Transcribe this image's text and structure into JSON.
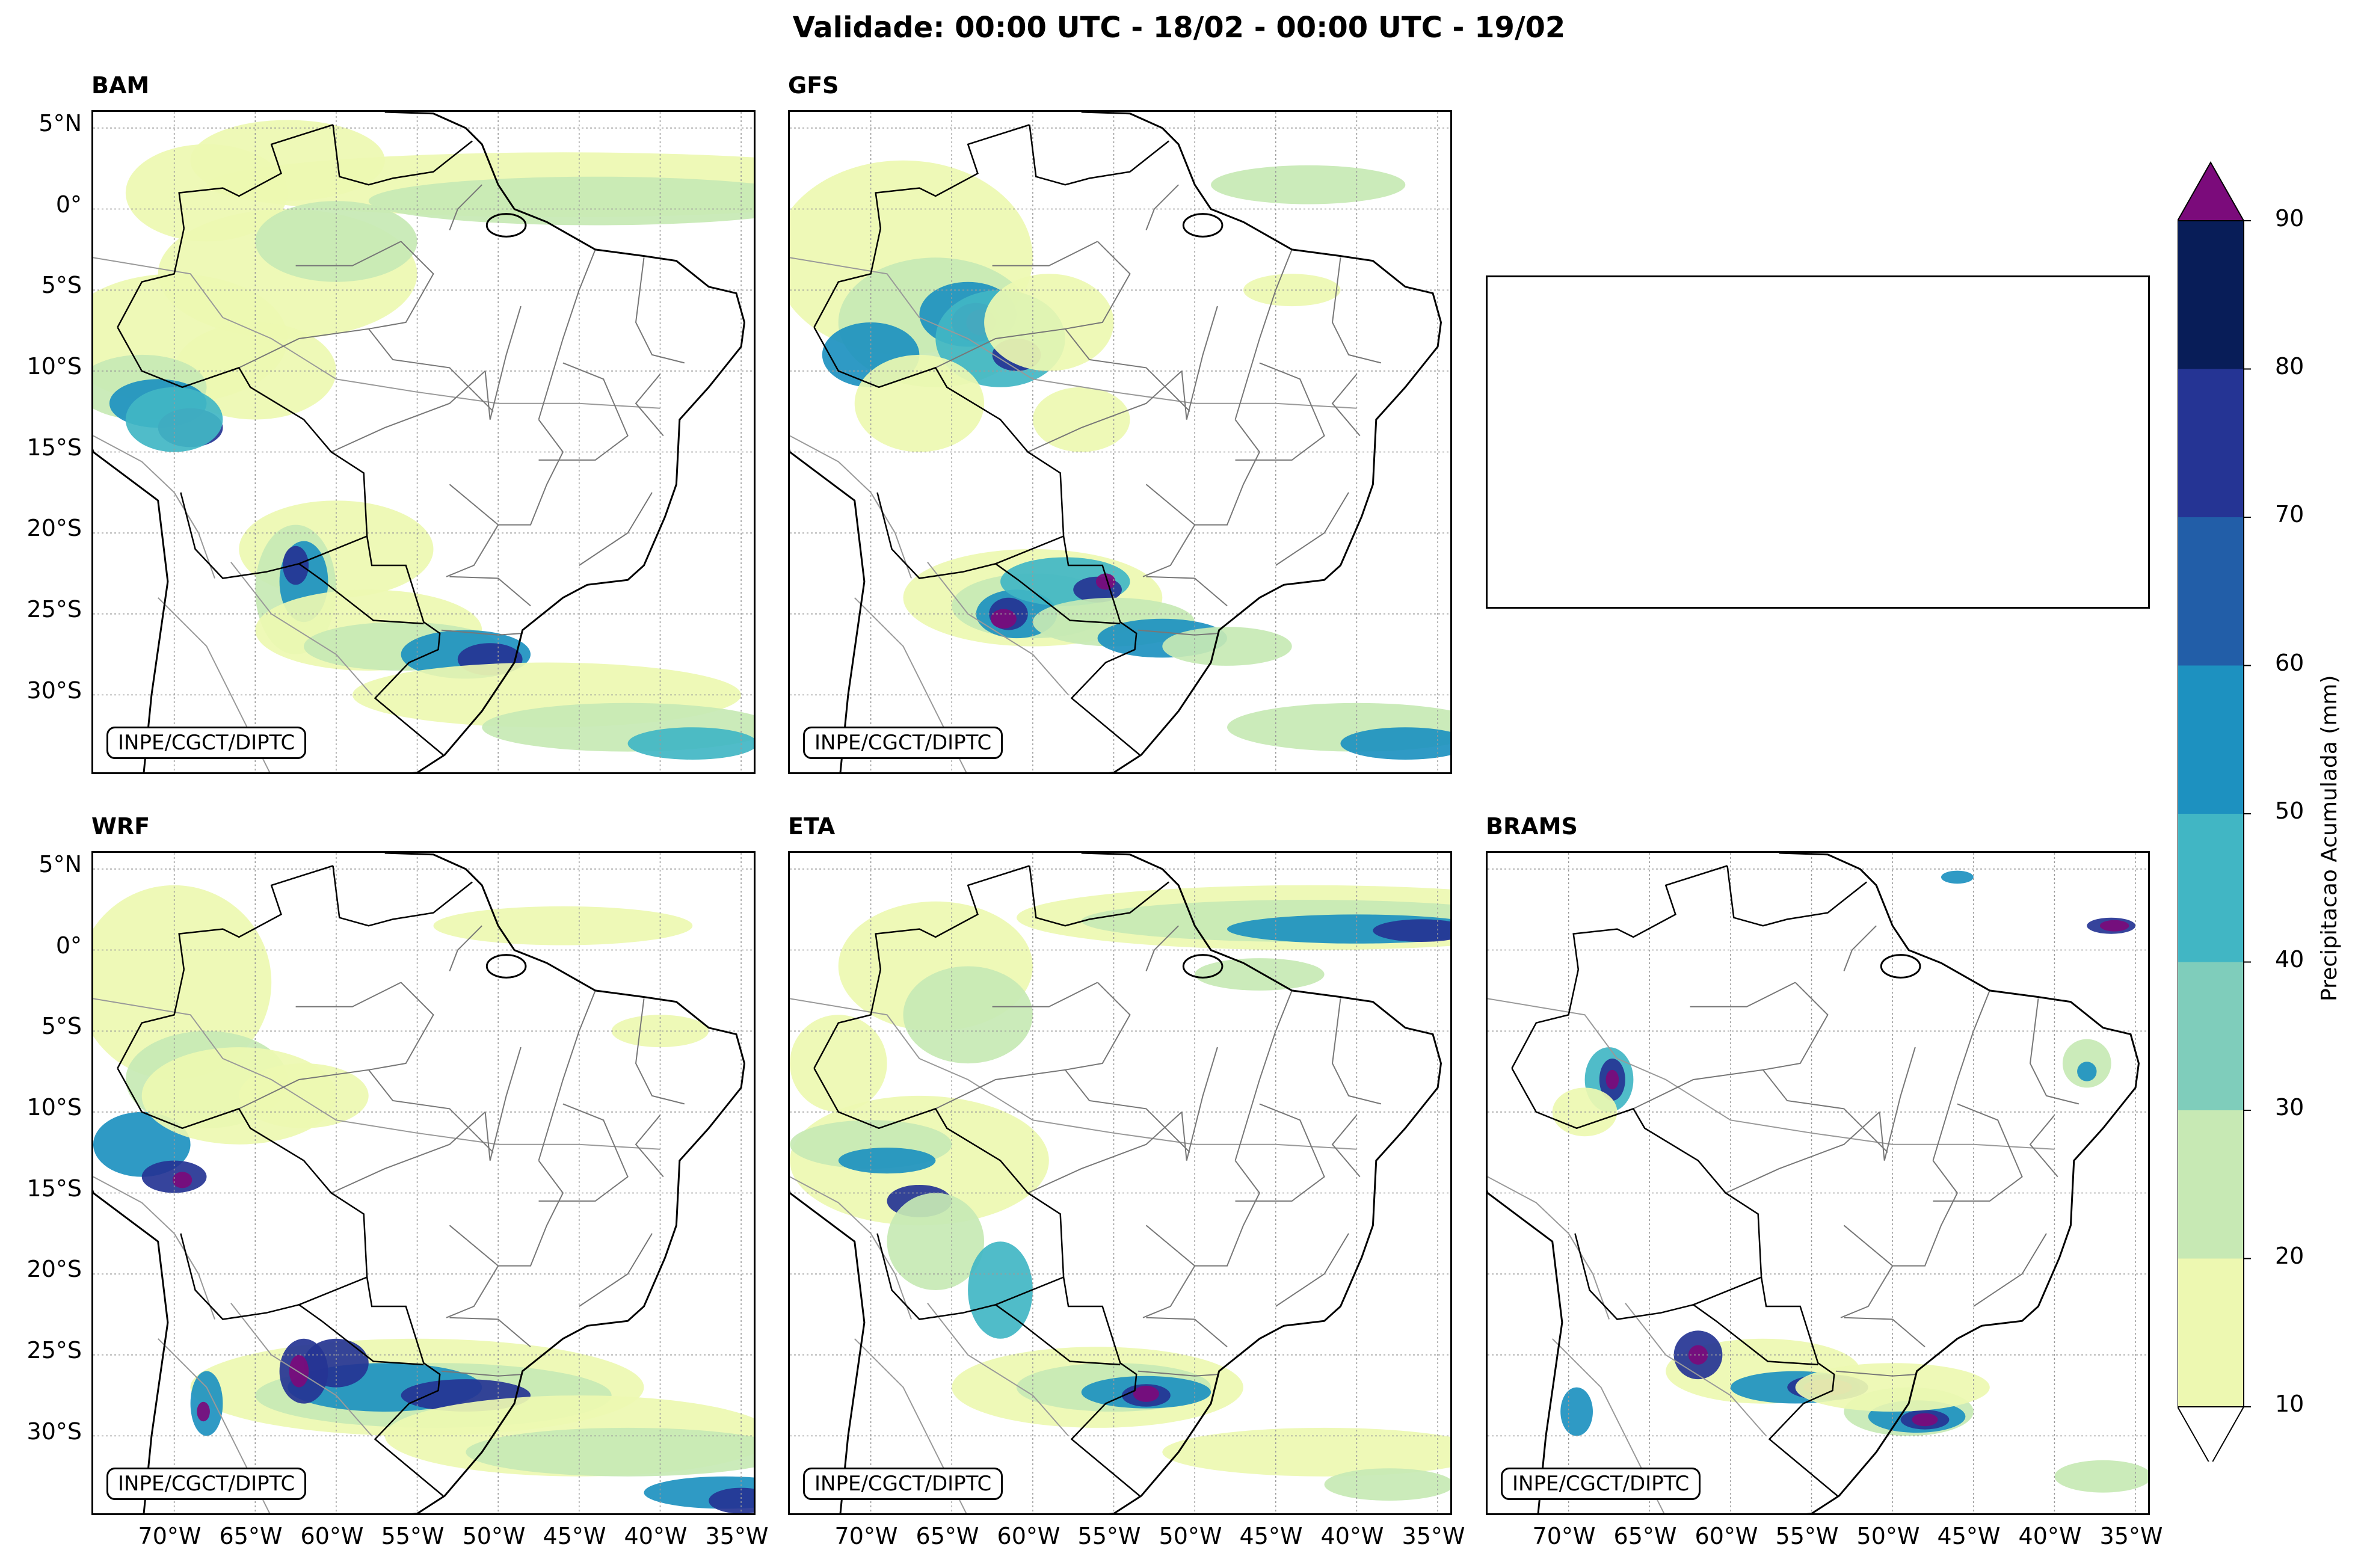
{
  "title": "Validade: 00:00 UTC - 18/02 - 00:00 UTC - 19/02",
  "credit": "INPE/CGCT/DIPTC",
  "lat_ticks": [
    "5°N",
    "0°",
    "5°S",
    "10°S",
    "15°S",
    "20°S",
    "25°S",
    "30°S"
  ],
  "lon_ticks": [
    "70°W",
    "65°W",
    "60°W",
    "55°W",
    "50°W",
    "45°W",
    "40°W",
    "35°W"
  ],
  "panels": [
    {
      "name": "BAM"
    },
    {
      "name": "GFS"
    },
    {
      "name": "WRF"
    },
    {
      "name": "ETA"
    },
    {
      "name": "BRAMS"
    }
  ],
  "colorbar": {
    "label": "Precipitacao Acumulada (mm)",
    "ticks": [
      "10",
      "20",
      "30",
      "40",
      "50",
      "60",
      "70",
      "80",
      "90"
    ],
    "levels": [
      10,
      20,
      30,
      40,
      50,
      60,
      70,
      80,
      90
    ],
    "colors": [
      "#edf8b1",
      "#c7e9b4",
      "#7fcdbb",
      "#41b6c4",
      "#1d91c0",
      "#225ea8",
      "#253494",
      "#081d58"
    ],
    "over_color": "#7b0b7b",
    "under_color": "#ffffff"
  },
  "chart_data": {
    "type": "heatmap",
    "title": "Validade: 00:00 UTC - 18/02 - 00:00 UTC - 19/02",
    "variable": "Precipitacao Acumulada (mm)",
    "extent": {
      "lon": [
        -75,
        -34
      ],
      "lat": [
        -35,
        6
      ]
    },
    "models": [
      "BAM",
      "GFS",
      "WRF",
      "ETA",
      "BRAMS"
    ]
  }
}
